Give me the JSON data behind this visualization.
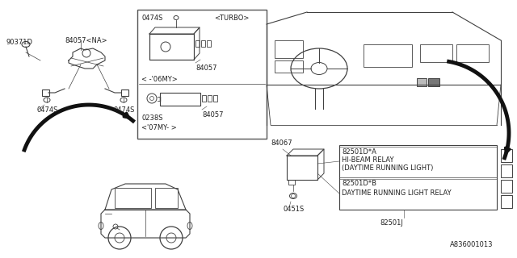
{
  "bg_color": "#ffffff",
  "diagram_code": "A836001013",
  "lc": "#404040",
  "tc": "#202020",
  "parts": {
    "left": {
      "90371D": "90371D",
      "84057NA": "84057<NA>",
      "0474S_left": "0474S",
      "0474S_right": "0474S"
    },
    "center_box": {
      "0474S": "0474S",
      "TURBO": "<TURBO>",
      "84057_top": "84057",
      "06MY": "< -'06MY>",
      "0238S": "0238S",
      "07MY": "<'07MY- >",
      "84057_bot": "84057"
    },
    "right": {
      "84067": "84067",
      "0451S": "0451S",
      "82501DA": "82501D*A",
      "hibeam": "HI-BEAM RELAY",
      "daytime1": "(DAYTIME RUNNING LIGHT)",
      "82501DB": "82501D*B",
      "daytime2": "DAYTIME RUNNING LIGHT RELAY",
      "82501J": "82501J"
    }
  }
}
